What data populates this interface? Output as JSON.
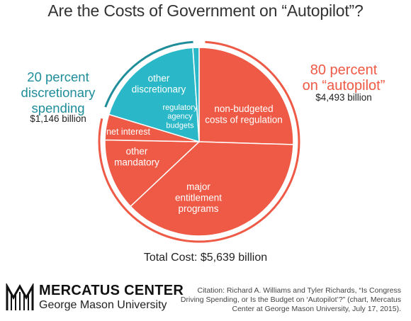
{
  "chart_data": {
    "type": "pie",
    "title": "Are the Costs of Government on “Autopilot”?",
    "unit": "billion",
    "slices": [
      {
        "label": "non-budgeted costs of regulation",
        "value": 1437,
        "group": "autopilot"
      },
      {
        "label": "major entitlement programs",
        "value": 2114,
        "group": "autopilot"
      },
      {
        "label": "other mandatory",
        "value": 695,
        "group": "autopilot"
      },
      {
        "label": "net interest",
        "value": 247,
        "group": "autopilot"
      },
      {
        "label": "other discretionary",
        "value": 1086,
        "group": "discretionary"
      },
      {
        "label": "regulatory agency budgets",
        "value": 60,
        "group": "discretionary"
      }
    ],
    "groups": {
      "autopilot": {
        "label_line1": "80 percent",
        "label_line2": "on “autopilot”",
        "amount": "$4,493 billion",
        "color": "#ee5a45"
      },
      "discretionary": {
        "label_line1": "20 percent",
        "label_line2": "discretionary",
        "label_line3": "spending",
        "amount": "$1,146 billion",
        "color": "#2ab8c8"
      }
    },
    "total_label": "Total Cost: $5,639 billion"
  },
  "colors": {
    "autopilot": "#ee5a45",
    "discretionary": "#2ab8c8",
    "discretionary_text": "#1f8d9a"
  },
  "footer": {
    "logo_name": "MERCATUS CENTER",
    "logo_sub": "George Mason University",
    "citation": "Citation: Richard A. Williams and Tyler Richards, “Is Congress\nDriving Spending, or Is the Budget on ‘Autopilot’?” (chart, Mercatus\nCenter at George Mason University, July 17, 2015)."
  }
}
